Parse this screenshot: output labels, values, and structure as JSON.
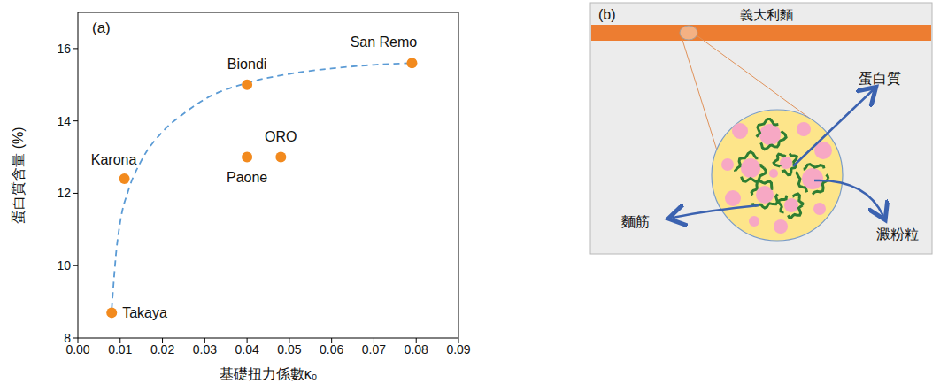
{
  "chart_data": {
    "type": "scatter",
    "panel_label": "(a)",
    "x_label": "基礎扭力係數κ₀",
    "y_label": "蛋白質含量 (%)",
    "x": [
      0.008,
      0.011,
      0.04,
      0.04,
      0.048,
      0.079
    ],
    "values": [
      8.7,
      12.4,
      15.0,
      13.0,
      13.0,
      15.6
    ],
    "point_labels": [
      "Takaya",
      "Karona",
      "Biondi",
      "Paone",
      "ORO",
      "San Remo"
    ],
    "color": "#f28a1e",
    "marker": "circle",
    "curve": {
      "type": "line",
      "x": [
        0.008,
        0.0085,
        0.009,
        0.01,
        0.012,
        0.015,
        0.02,
        0.025,
        0.03,
        0.04,
        0.05,
        0.06,
        0.07,
        0.079
      ],
      "values": [
        8.8,
        9.6,
        10.3,
        11.2,
        12.1,
        12.9,
        13.7,
        14.2,
        14.6,
        15.05,
        15.3,
        15.45,
        15.55,
        15.6
      ],
      "color": "#5b9bd5",
      "line_style": "dashed"
    },
    "xlim": [
      0,
      0.09
    ],
    "xticks": [
      {
        "value": 0,
        "label": "0.00"
      },
      0.01,
      0.02,
      0.03,
      0.04,
      0.05,
      0.06,
      0.07,
      0.08,
      0.09
    ],
    "ylim": [
      8,
      17
    ],
    "yticks": [
      8,
      10,
      12,
      14,
      16
    ],
    "grid": false
  },
  "diagram": {
    "panel_label": "(b)",
    "bar_label": "義大利麵",
    "labels": {
      "protein": "蛋白質",
      "gluten": "麵筋",
      "starch": "澱粉粒"
    }
  }
}
